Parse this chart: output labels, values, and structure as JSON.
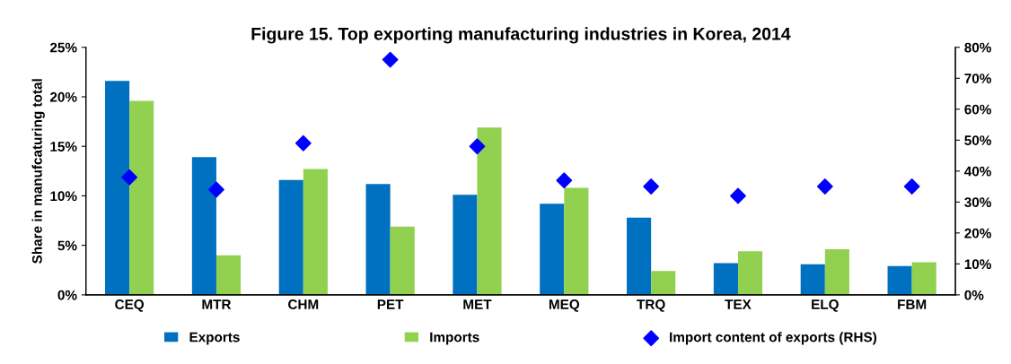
{
  "chart_data": {
    "type": "bar",
    "title": "Figure 15. Top exporting manufacturing industries in Korea, 2014",
    "ylabel": "Share in manufcaturing total",
    "categories": [
      "CEQ",
      "MTR",
      "CHM",
      "PET",
      "MET",
      "MEQ",
      "TRQ",
      "TEX",
      "ELQ",
      "FBM"
    ],
    "series": [
      {
        "name": "Exports",
        "color": "#0070c0",
        "values": [
          21.6,
          13.9,
          11.6,
          11.2,
          10.1,
          9.2,
          7.8,
          3.2,
          3.1,
          2.9
        ]
      },
      {
        "name": "Imports",
        "color": "#92d050",
        "values": [
          19.6,
          4.0,
          12.7,
          6.9,
          16.9,
          10.8,
          2.4,
          4.4,
          4.6,
          3.3
        ]
      },
      {
        "name": "Import content of exports (RHS)",
        "color": "#0000ff",
        "type": "scatter",
        "axis": "y2",
        "marker": "diamond",
        "values": [
          38,
          34,
          49,
          76,
          48,
          37,
          35,
          32,
          35,
          35
        ]
      }
    ],
    "ylim": [
      0,
      25
    ],
    "yticks": [
      {
        "value": 0,
        "label": "0%"
      },
      {
        "value": 5,
        "label": "5%"
      },
      {
        "value": 10,
        "label": "10%"
      },
      {
        "value": 15,
        "label": "15%"
      },
      {
        "value": 20,
        "label": "20%"
      },
      {
        "value": 25,
        "label": "25%"
      }
    ],
    "y2lim": [
      0,
      80
    ],
    "y2ticks": [
      {
        "value": 0,
        "label": "0%"
      },
      {
        "value": 10,
        "label": "10%"
      },
      {
        "value": 20,
        "label": "20%"
      },
      {
        "value": 30,
        "label": "30%"
      },
      {
        "value": 40,
        "label": "40%"
      },
      {
        "value": 50,
        "label": "50%"
      },
      {
        "value": 60,
        "label": "60%"
      },
      {
        "value": 70,
        "label": "70%"
      },
      {
        "value": 80,
        "label": "80%"
      }
    ],
    "grid": false,
    "legend": "bottom"
  }
}
